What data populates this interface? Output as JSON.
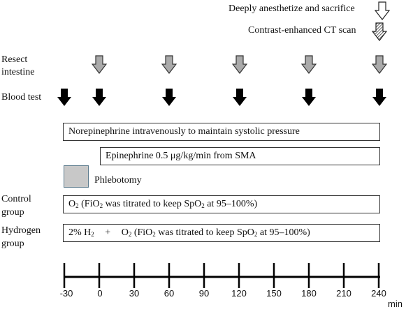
{
  "legend": {
    "sacrifice": "Deeply anesthetize and sacrifice",
    "ct_scan": "Contrast-enhanced CT scan"
  },
  "rows": {
    "resect_line1": "Resect",
    "resect_line2": "intestine",
    "blood_test": "Blood test",
    "control_line1": "Control",
    "control_line2": "group",
    "hydrogen_line1": "Hydrogen",
    "hydrogen_line2": "group"
  },
  "bars": {
    "norepinephrine": "Norepinephrine intravenously to maintain systolic pressure",
    "epinephrine": "Epinephrine 0.5 μg/kg/min from SMA",
    "phlebotomy": "Phlebotomy"
  },
  "control_bar": {
    "o2": "O",
    "o2_sub": "2",
    "rest_a": " (FiO",
    "fio_sub": "2",
    "rest_b": " was titrated to keep SpO",
    "spo_sub": "2",
    "rest_c": " at 95–100%)"
  },
  "hydrogen_bar": {
    "h2_pre": "2% H",
    "h2_sub": "2",
    "plus": "+",
    "o2": "O",
    "o2_sub": "2",
    "rest_a": " (FiO",
    "fio_sub": "2",
    "rest_b": " was titrated to keep SpO",
    "spo_sub": "2",
    "rest_c": " at 95–100%)"
  },
  "timeline": {
    "ticks": [
      "-30",
      "0",
      "30",
      "60",
      "90",
      "120",
      "150",
      "180",
      "210",
      "240"
    ],
    "unit": "min"
  },
  "colors": {
    "solid_arrow": "#000000",
    "gray_arrow": "#aaaaaa",
    "phlebotomy_fill": "#c8c8c8",
    "phlebotomy_border": "#5b7a8c"
  }
}
